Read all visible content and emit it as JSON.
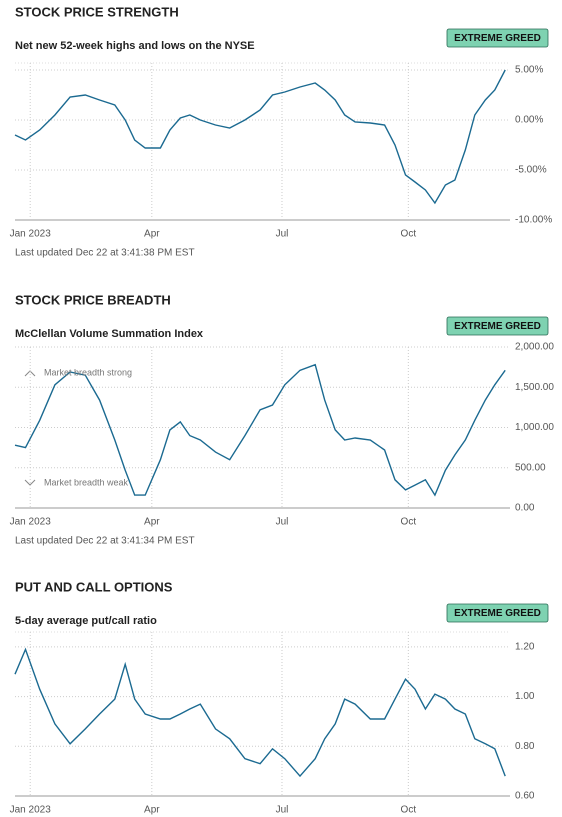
{
  "chart_data": [
    {
      "type": "line",
      "title": "STOCK PRICE STRENGTH",
      "subtitle": "Net new 52-week highs and lows on the NYSE",
      "badge": "EXTREME GREED",
      "updated": "Last updated Dec 22 at 3:41:38 PM EST",
      "x": [
        0,
        1.1,
        2.6,
        4.2,
        5.8,
        7.4,
        8.9,
        10.5,
        11.6,
        12.6,
        13.7,
        15.3,
        16.3,
        17.4,
        18.4,
        19.5,
        21.1,
        22.6,
        24.2,
        25.8,
        27.1,
        28.4,
        30,
        31.6,
        32.6,
        33.7,
        34.7,
        35.8,
        37.4,
        38.9,
        40,
        41.1,
        42.1,
        43.2,
        44.2,
        45.3,
        46.3,
        47.4,
        48.4,
        49.5,
        50.5,
        51.6
      ],
      "series": [
        {
          "color": "#1b6a91",
          "values": [
            -1.5,
            -2,
            -1,
            0.5,
            2.3,
            2.5,
            2,
            1.5,
            0,
            -2,
            -2.8,
            -2.8,
            -1,
            0.2,
            0.5,
            0,
            -0.5,
            -0.8,
            0,
            1,
            2.5,
            2.8,
            3.3,
            3.7,
            3,
            2,
            0.5,
            -0.2,
            -0.3,
            -0.5,
            -2.5,
            -5.5,
            -6.2,
            -7,
            -8.3,
            -6.5,
            -6,
            -3,
            0.5,
            2,
            3,
            5
          ]
        }
      ],
      "xlim": [
        0,
        52.1
      ],
      "xticks": [
        {
          "value": 1.6,
          "label": "Jan 2023"
        },
        {
          "value": 14.4,
          "label": "Apr"
        },
        {
          "value": 28.1,
          "label": "Jul"
        },
        {
          "value": 41.4,
          "label": "Oct"
        }
      ],
      "ylim": [
        -10,
        5.7
      ],
      "yticks": [
        {
          "value": -10,
          "label": "-10.00%"
        },
        {
          "value": -5,
          "label": "-5.00%"
        },
        {
          "value": 0,
          "label": "0.00%"
        },
        {
          "value": 5,
          "label": "5.00%"
        }
      ],
      "grid": true
    },
    {
      "type": "line",
      "title": "STOCK PRICE BREADTH",
      "subtitle": "McClellan Volume Summation Index",
      "badge": "EXTREME GREED",
      "updated": "Last updated Dec 22 at 3:41:34 PM EST",
      "annotations": [
        "Market breadth strong",
        "Market breadth weak"
      ],
      "x": [
        0,
        1.1,
        2.6,
        4.2,
        5.8,
        7.4,
        8.9,
        10.5,
        11.6,
        12.6,
        13.7,
        15.3,
        16.3,
        17.4,
        18.4,
        19.5,
        21.1,
        22.6,
        24.2,
        25.8,
        27.1,
        28.4,
        30,
        31.6,
        32.6,
        33.7,
        34.7,
        35.8,
        37.4,
        38.9,
        40,
        41.1,
        42.1,
        43.2,
        44.2,
        45.3,
        46.3,
        47.4,
        48.4,
        49.5,
        50.5,
        51.6
      ],
      "series": [
        {
          "color": "#1b6a91",
          "values": [
            780,
            750,
            1090,
            1530,
            1690,
            1650,
            1340,
            845,
            470,
            160,
            160,
            600,
            970,
            1070,
            900,
            845,
            695,
            600,
            900,
            1220,
            1280,
            1530,
            1710,
            1780,
            1340,
            970,
            845,
            870,
            845,
            720,
            350,
            225,
            285,
            350,
            160,
            470,
            660,
            845,
            1090,
            1340,
            1530,
            1710
          ]
        }
      ],
      "xlim": [
        0,
        52.1
      ],
      "xticks": [
        {
          "value": 1.6,
          "label": "Jan 2023"
        },
        {
          "value": 14.4,
          "label": "Apr"
        },
        {
          "value": 28.1,
          "label": "Jul"
        },
        {
          "value": 41.4,
          "label": "Oct"
        }
      ],
      "ylim": [
        0,
        2000
      ],
      "yticks": [
        {
          "value": 0,
          "label": "0.00"
        },
        {
          "value": 500,
          "label": "500.00"
        },
        {
          "value": 1000,
          "label": "1,000.00"
        },
        {
          "value": 1500,
          "label": "1,500.00"
        },
        {
          "value": 2000,
          "label": "2,000.00"
        }
      ],
      "grid": true
    },
    {
      "type": "line",
      "title": "PUT AND CALL OPTIONS",
      "subtitle": "5-day average put/call ratio",
      "badge": "EXTREME GREED",
      "x": [
        0,
        1.1,
        2.6,
        4.2,
        5.8,
        7.4,
        8.9,
        10.5,
        11.6,
        12.6,
        13.7,
        15.3,
        16.3,
        17.4,
        18.4,
        19.5,
        21.1,
        22.6,
        24.2,
        25.8,
        27.1,
        28.4,
        30,
        31.6,
        32.6,
        33.7,
        34.7,
        35.8,
        37.4,
        38.9,
        40,
        41.1,
        42.1,
        43.2,
        44.2,
        45.3,
        46.3,
        47.4,
        48.4,
        49.5,
        50.5,
        51.6
      ],
      "series": [
        {
          "color": "#1b6a91",
          "values": [
            1.09,
            1.19,
            1.03,
            0.89,
            0.81,
            0.87,
            0.93,
            0.99,
            1.13,
            0.99,
            0.93,
            0.91,
            0.91,
            0.93,
            0.95,
            0.97,
            0.87,
            0.83,
            0.75,
            0.73,
            0.79,
            0.75,
            0.68,
            0.75,
            0.83,
            0.89,
            0.99,
            0.97,
            0.91,
            0.91,
            0.99,
            1.07,
            1.03,
            0.95,
            1.01,
            0.99,
            0.95,
            0.93,
            0.83,
            0.81,
            0.79,
            0.68
          ]
        }
      ],
      "xlim": [
        0,
        52.1
      ],
      "xticks": [
        {
          "value": 1.6,
          "label": "Jan 2023"
        },
        {
          "value": 14.4,
          "label": "Apr"
        },
        {
          "value": 28.1,
          "label": "Jul"
        },
        {
          "value": 41.4,
          "label": "Oct"
        }
      ],
      "ylim": [
        0.6,
        1.26
      ],
      "yticks": [
        {
          "value": 0.6,
          "label": "0.60"
        },
        {
          "value": 0.8,
          "label": "0.80"
        },
        {
          "value": 1.0,
          "label": "1.00"
        },
        {
          "value": 1.2,
          "label": "1.20"
        }
      ],
      "grid": true
    }
  ]
}
